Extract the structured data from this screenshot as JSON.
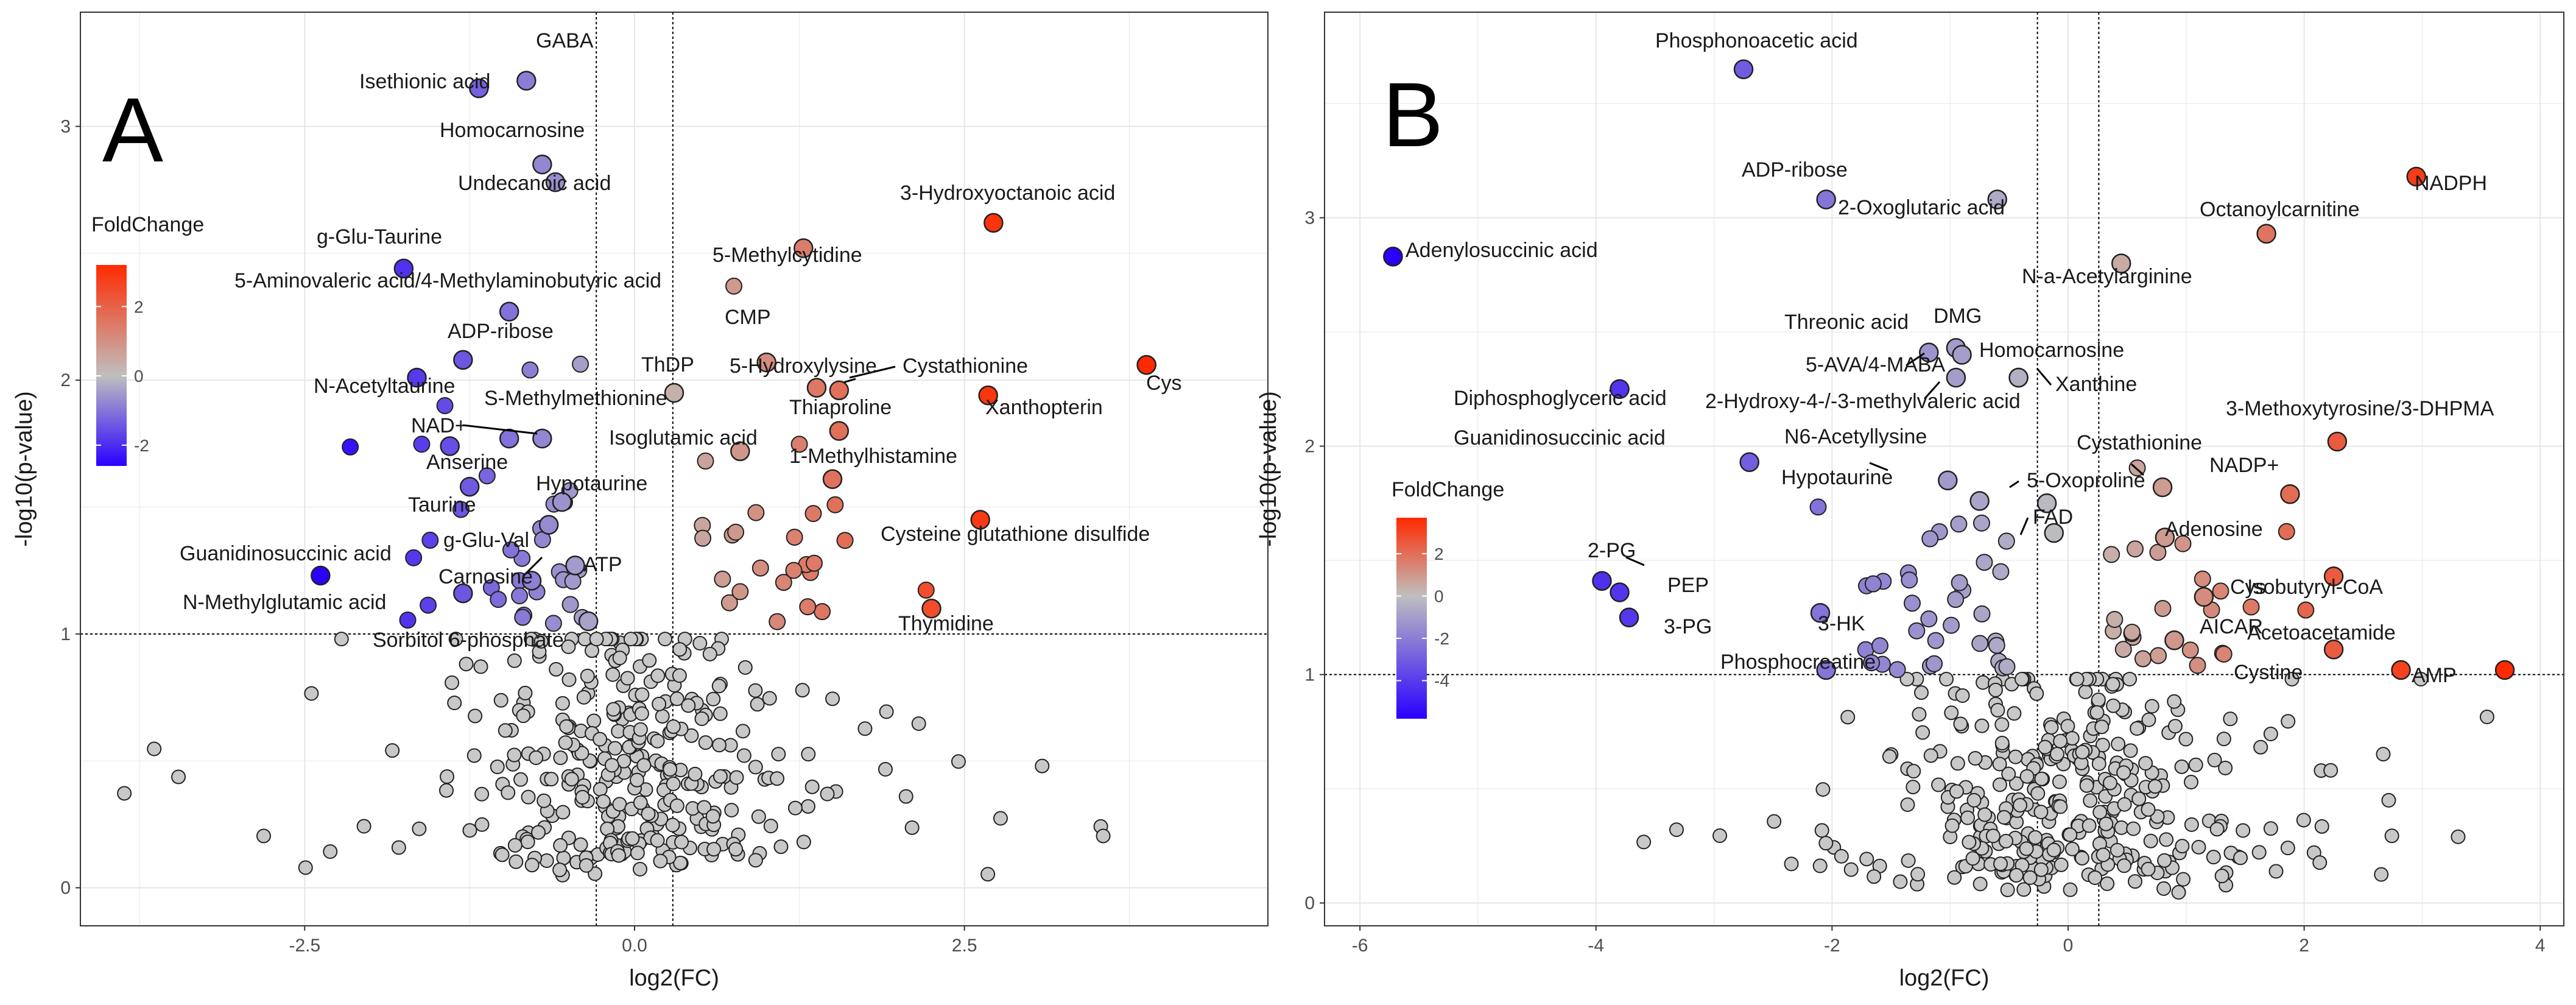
{
  "colors": {
    "low": "#2a00ff",
    "mid": "#bfbfbf",
    "high": "#ff2a00",
    "grid": "#e6e6e6",
    "thresh": "#000000"
  },
  "chart_data": [
    {
      "panel": "A",
      "type": "scatter",
      "title": "",
      "xlabel": "log2(FC)",
      "ylabel": "-log10(p-value)",
      "xlim": [
        -4.2,
        4.8
      ],
      "ylim": [
        -0.15,
        3.45
      ],
      "xticks": [
        -2.5,
        0,
        2.5
      ],
      "xtick_labels": [
        "-2.5",
        "0.0",
        "2.5"
      ],
      "yticks": [
        0,
        1,
        2,
        3
      ],
      "ytick_labels": [
        "0",
        "1",
        "2",
        "3"
      ],
      "fc_threshold": 0.29,
      "p_threshold": 1.0,
      "legend": {
        "title": "FoldChange",
        "range": [
          -2.6,
          3.2
        ],
        "ticks": [
          -2,
          0,
          2
        ],
        "tick_labels": [
          "-2",
          "0",
          "2"
        ],
        "placement": "upper-left"
      },
      "labeled_points": [
        {
          "label": "GABA",
          "x": -0.82,
          "y": 3.18
        },
        {
          "label": "Isethionic acid",
          "x": -1.18,
          "y": 3.15
        },
        {
          "label": "Homocarnosine",
          "x": -0.7,
          "y": 2.85
        },
        {
          "label": "Undecanoic acid",
          "x": -0.6,
          "y": 2.78
        },
        {
          "label": "3-Hydroxyoctanoic acid",
          "x": 2.72,
          "y": 2.62
        },
        {
          "label": "5-Methylcytidine",
          "x": 1.28,
          "y": 2.52
        },
        {
          "label": "g-Glu-Taurine",
          "x": -1.75,
          "y": 2.44
        },
        {
          "label": "5-Aminovaleric acid/4-Methylaminobutyric acid",
          "x": -0.95,
          "y": 2.27
        },
        {
          "label": "ADP-ribose",
          "x": -1.3,
          "y": 2.08
        },
        {
          "label": "CMP",
          "x": 1.0,
          "y": 2.07
        },
        {
          "label": "ThDP",
          "x": 0.3,
          "y": 1.95
        },
        {
          "label": "5-Hydroxylysine",
          "x": 1.38,
          "y": 1.97
        },
        {
          "label": "Cystathionine",
          "x": 1.55,
          "y": 1.96
        },
        {
          "label": "Cys",
          "x": 3.88,
          "y": 2.06
        },
        {
          "label": "N-Acetyltaurine",
          "x": -1.65,
          "y": 2.01
        },
        {
          "label": "Xanthopterin",
          "x": 2.68,
          "y": 1.94
        },
        {
          "label": "S-Methylmethionine",
          "x": -0.95,
          "y": 1.77
        },
        {
          "label": "NAD+",
          "x": -0.7,
          "y": 1.77
        },
        {
          "label": "Thiaproline",
          "x": 1.55,
          "y": 1.8
        },
        {
          "label": "Isoglutamic acid",
          "x": 0.8,
          "y": 1.72
        },
        {
          "label": "Anserine",
          "x": -1.4,
          "y": 1.74
        },
        {
          "label": "1-Methylhistamine",
          "x": 1.5,
          "y": 1.61
        },
        {
          "label": "Hypotaurine",
          "x": -0.55,
          "y": 1.52
        },
        {
          "label": "Taurine",
          "x": -1.25,
          "y": 1.58
        },
        {
          "label": "Cysteine glutathione disulfide",
          "x": 2.62,
          "y": 1.45
        },
        {
          "label": "g-Glu-Val",
          "x": -0.65,
          "y": 1.43
        },
        {
          "label": "Guanidinosuccinic acid",
          "x": -2.38,
          "y": 1.23
        },
        {
          "label": "ATP",
          "x": -0.45,
          "y": 1.27
        },
        {
          "label": "Carnosine",
          "x": -0.78,
          "y": 1.21
        },
        {
          "label": "N-Methylglutamic acid",
          "x": -1.3,
          "y": 1.16
        },
        {
          "label": "Thymidine",
          "x": 2.25,
          "y": 1.1
        },
        {
          "label": "Sorbitol 6-phosphate",
          "x": -0.35,
          "y": 1.05
        }
      ]
    },
    {
      "panel": "B",
      "type": "scatter",
      "title": "",
      "xlabel": "log2(FC)",
      "ylabel": "-log10(p-value)",
      "xlim": [
        -6.3,
        4.2
      ],
      "ylim": [
        -0.1,
        3.9
      ],
      "xticks": [
        -6,
        -4,
        -2,
        0,
        2,
        4
      ],
      "xtick_labels": [
        "-6",
        "-4",
        "-2",
        "0",
        "2",
        "4"
      ],
      "yticks": [
        0,
        1,
        2,
        3
      ],
      "ytick_labels": [
        "0",
        "1",
        "2",
        "3"
      ],
      "fc_threshold": 0.26,
      "p_threshold": 1.0,
      "legend": {
        "title": "FoldChange",
        "range": [
          -5.8,
          3.7
        ],
        "ticks": [
          2,
          0,
          -2,
          -4
        ],
        "tick_labels": [
          "2",
          "0",
          "-2",
          "-4"
        ],
        "placement": "middle-left"
      },
      "labeled_points": [
        {
          "label": "Phosphonoacetic acid",
          "x": -2.75,
          "y": 3.65
        },
        {
          "label": "NADPH",
          "x": 2.95,
          "y": 3.18
        },
        {
          "label": "ADP-ribose",
          "x": -2.05,
          "y": 3.08
        },
        {
          "label": "2-Oxoglutaric acid",
          "x": -0.6,
          "y": 3.08
        },
        {
          "label": "Octanoylcarnitine",
          "x": 1.68,
          "y": 2.93
        },
        {
          "label": "Adenylosuccinic acid",
          "x": -5.72,
          "y": 2.83
        },
        {
          "label": "N-a-Acetylarginine",
          "x": 0.45,
          "y": 2.8
        },
        {
          "label": "Threonic acid",
          "x": -1.18,
          "y": 2.41
        },
        {
          "label": "DMG",
          "x": -0.95,
          "y": 2.43
        },
        {
          "label": "5-AVA/4-MABA",
          "x": -0.9,
          "y": 2.4
        },
        {
          "label": "Homocarnosine",
          "x": -0.42,
          "y": 2.3
        },
        {
          "label": "Xanthine",
          "x": -0.42,
          "y": 2.3
        },
        {
          "label": "2-Hydroxy-4-/-3-methylvaleric acid",
          "x": -0.95,
          "y": 2.3
        },
        {
          "label": "Diphosphoglyceric acid",
          "x": -3.8,
          "y": 2.25
        },
        {
          "label": "3-Methoxytyrosine/3-DHPMA",
          "x": 2.28,
          "y": 2.02
        },
        {
          "label": "Guanidinosuccinic acid",
          "x": -2.7,
          "y": 1.93
        },
        {
          "label": "N6-Acetyllysine",
          "x": -1.02,
          "y": 1.85
        },
        {
          "label": "Cystathionine",
          "x": 0.8,
          "y": 1.82
        },
        {
          "label": "Hypotaurine",
          "x": -0.75,
          "y": 1.76
        },
        {
          "label": "NADP+",
          "x": 1.88,
          "y": 1.79
        },
        {
          "label": "5-Oxoproline",
          "x": -0.18,
          "y": 1.75
        },
        {
          "label": "FAD",
          "x": -0.12,
          "y": 1.62
        },
        {
          "label": "Adenosine",
          "x": 0.82,
          "y": 1.6
        },
        {
          "label": "2-PG",
          "x": -3.95,
          "y": 1.41
        },
        {
          "label": "PEP",
          "x": -3.8,
          "y": 1.36
        },
        {
          "label": "Isobutyryl-CoA",
          "x": 2.25,
          "y": 1.43
        },
        {
          "label": "Cys",
          "x": 1.15,
          "y": 1.34
        },
        {
          "label": "3-PG",
          "x": -3.72,
          "y": 1.25
        },
        {
          "label": "3-HK",
          "x": -2.1,
          "y": 1.27
        },
        {
          "label": "AICAR",
          "x": 0.9,
          "y": 1.15
        },
        {
          "label": "Acetoacetamide",
          "x": 2.25,
          "y": 1.11
        },
        {
          "label": "Phosphocreatine",
          "x": -2.05,
          "y": 1.02
        },
        {
          "label": "Cystine",
          "x": 2.82,
          "y": 1.02
        },
        {
          "label": "AMP",
          "x": 3.7,
          "y": 1.02
        }
      ]
    }
  ]
}
